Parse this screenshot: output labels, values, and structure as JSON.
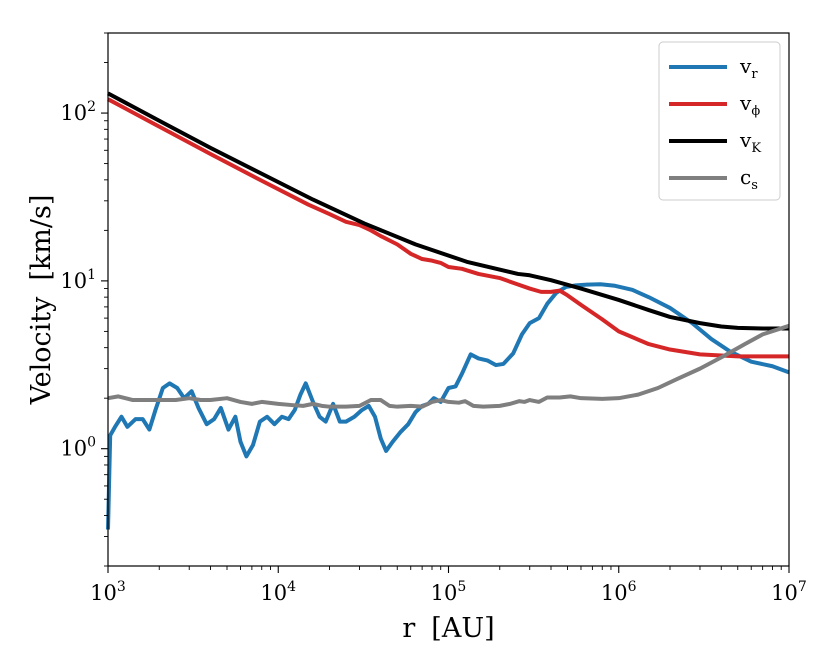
{
  "chart_data": {
    "type": "line",
    "xscale": "log",
    "yscale": "log",
    "xlim": [
      1000,
      10000000
    ],
    "ylim": [
      0.2,
      300
    ],
    "grid": false,
    "legend_position": "top-right",
    "xlabel": {
      "main": "r",
      "unit": "[AU]"
    },
    "ylabel": {
      "main": "Velocity",
      "unit": "[km/s]"
    },
    "x_ticks": [
      {
        "value": 1000,
        "mant": "10",
        "exp": "3"
      },
      {
        "value": 10000,
        "mant": "10",
        "exp": "4"
      },
      {
        "value": 100000,
        "mant": "10",
        "exp": "5"
      },
      {
        "value": 1000000,
        "mant": "10",
        "exp": "6"
      },
      {
        "value": 10000000,
        "mant": "10",
        "exp": "7"
      }
    ],
    "y_ticks": [
      {
        "value": 1,
        "mant": "10",
        "exp": "0"
      },
      {
        "value": 10,
        "mant": "10",
        "exp": "1"
      },
      {
        "value": 100,
        "mant": "10",
        "exp": "2"
      }
    ],
    "series": [
      {
        "name": "v_r",
        "label_main": "v",
        "label_sub": "r",
        "color": "#1f77b4",
        "points": [
          [
            1000,
            0.33
          ],
          [
            1030,
            1.2
          ],
          [
            1100,
            1.35
          ],
          [
            1200,
            1.55
          ],
          [
            1300,
            1.35
          ],
          [
            1450,
            1.5
          ],
          [
            1600,
            1.5
          ],
          [
            1750,
            1.3
          ],
          [
            1900,
            1.7
          ],
          [
            2100,
            2.3
          ],
          [
            2300,
            2.45
          ],
          [
            2550,
            2.3
          ],
          [
            2800,
            2.0
          ],
          [
            3100,
            2.2
          ],
          [
            3400,
            1.75
          ],
          [
            3800,
            1.4
          ],
          [
            4200,
            1.5
          ],
          [
            4600,
            1.75
          ],
          [
            5100,
            1.3
          ],
          [
            5600,
            1.55
          ],
          [
            6000,
            1.1
          ],
          [
            6500,
            0.9
          ],
          [
            7100,
            1.05
          ],
          [
            7800,
            1.45
          ],
          [
            8600,
            1.55
          ],
          [
            9500,
            1.4
          ],
          [
            10500,
            1.55
          ],
          [
            11500,
            1.5
          ],
          [
            12500,
            1.7
          ],
          [
            13500,
            2.1
          ],
          [
            14500,
            2.45
          ],
          [
            16000,
            1.9
          ],
          [
            17500,
            1.55
          ],
          [
            19000,
            1.45
          ],
          [
            21000,
            1.85
          ],
          [
            23000,
            1.45
          ],
          [
            25000,
            1.45
          ],
          [
            28000,
            1.55
          ],
          [
            31000,
            1.7
          ],
          [
            34000,
            1.8
          ],
          [
            37000,
            1.55
          ],
          [
            40000,
            1.15
          ],
          [
            43000,
            0.97
          ],
          [
            47000,
            1.1
          ],
          [
            52000,
            1.25
          ],
          [
            58000,
            1.4
          ],
          [
            64000,
            1.65
          ],
          [
            70000,
            1.8
          ],
          [
            76000,
            1.85
          ],
          [
            82000,
            2.0
          ],
          [
            90000,
            1.9
          ],
          [
            100000,
            2.3
          ],
          [
            110000,
            2.35
          ],
          [
            120000,
            2.8
          ],
          [
            135000,
            3.65
          ],
          [
            150000,
            3.45
          ],
          [
            170000,
            3.35
          ],
          [
            190000,
            3.15
          ],
          [
            210000,
            3.2
          ],
          [
            240000,
            3.7
          ],
          [
            270000,
            4.8
          ],
          [
            300000,
            5.6
          ],
          [
            340000,
            6.0
          ],
          [
            380000,
            7.3
          ],
          [
            430000,
            8.5
          ],
          [
            490000,
            9.2
          ],
          [
            560000,
            9.4
          ],
          [
            650000,
            9.5
          ],
          [
            780000,
            9.55
          ],
          [
            950000,
            9.35
          ],
          [
            1200000,
            8.85
          ],
          [
            1500000,
            8.0
          ],
          [
            2000000,
            6.9
          ],
          [
            2700000,
            5.6
          ],
          [
            3500000,
            4.5
          ],
          [
            4500000,
            3.8
          ],
          [
            6000000,
            3.3
          ],
          [
            8000000,
            3.1
          ],
          [
            10000000,
            2.85
          ]
        ]
      },
      {
        "name": "v_phi",
        "label_main": "v",
        "label_sub": "ϕ",
        "color": "#d62728",
        "points": [
          [
            1000,
            121
          ],
          [
            2000,
            83
          ],
          [
            4000,
            57
          ],
          [
            8000,
            39.5
          ],
          [
            15000,
            28.5
          ],
          [
            20000,
            25
          ],
          [
            25000,
            22.5
          ],
          [
            30000,
            21.5
          ],
          [
            35000,
            20
          ],
          [
            40000,
            18.5
          ],
          [
            50000,
            16.5
          ],
          [
            60000,
            14.5
          ],
          [
            70000,
            13.5
          ],
          [
            80000,
            13.2
          ],
          [
            90000,
            12.8
          ],
          [
            100000,
            12.1
          ],
          [
            120000,
            11.8
          ],
          [
            130000,
            11.5
          ],
          [
            150000,
            11.0
          ],
          [
            200000,
            10.4
          ],
          [
            250000,
            9.6
          ],
          [
            300000,
            9.0
          ],
          [
            350000,
            8.6
          ],
          [
            400000,
            8.6
          ],
          [
            450000,
            8.75
          ],
          [
            500000,
            8.2
          ],
          [
            600000,
            7.2
          ],
          [
            800000,
            5.9
          ],
          [
            1000000,
            5.0
          ],
          [
            1500000,
            4.2
          ],
          [
            2000000,
            3.9
          ],
          [
            3000000,
            3.65
          ],
          [
            5000000,
            3.55
          ],
          [
            7000000,
            3.55
          ],
          [
            10000000,
            3.55
          ]
        ]
      },
      {
        "name": "v_K",
        "label_main": "v",
        "label_sub": "K",
        "color": "#000000",
        "points": [
          [
            1000,
            131
          ],
          [
            2000,
            90
          ],
          [
            4000,
            62
          ],
          [
            8000,
            43.5
          ],
          [
            16000,
            30.5
          ],
          [
            32000,
            22
          ],
          [
            64000,
            16.5
          ],
          [
            128000,
            13.0
          ],
          [
            256000,
            11.0
          ],
          [
            300000,
            10.8
          ],
          [
            400000,
            10.1
          ],
          [
            600000,
            9.0
          ],
          [
            1000000,
            7.7
          ],
          [
            1500000,
            6.7
          ],
          [
            2000000,
            6.1
          ],
          [
            3000000,
            5.6
          ],
          [
            4000000,
            5.35
          ],
          [
            5000000,
            5.25
          ],
          [
            7000000,
            5.2
          ],
          [
            10000000,
            5.2
          ]
        ]
      },
      {
        "name": "c_s",
        "label_main": "c",
        "label_sub": "s",
        "color": "#7f7f7f",
        "points": [
          [
            1000,
            2.0
          ],
          [
            1150,
            2.05
          ],
          [
            1400,
            1.95
          ],
          [
            1800,
            1.95
          ],
          [
            2500,
            1.95
          ],
          [
            3000,
            2.0
          ],
          [
            3500,
            1.95
          ],
          [
            4000,
            1.95
          ],
          [
            5000,
            2.0
          ],
          [
            6000,
            1.9
          ],
          [
            7000,
            1.85
          ],
          [
            8000,
            1.9
          ],
          [
            10000,
            1.85
          ],
          [
            12000,
            1.82
          ],
          [
            14000,
            1.8
          ],
          [
            16000,
            1.85
          ],
          [
            18000,
            1.8
          ],
          [
            20000,
            1.78
          ],
          [
            25000,
            1.78
          ],
          [
            30000,
            1.8
          ],
          [
            35000,
            1.95
          ],
          [
            40000,
            1.95
          ],
          [
            45000,
            1.8
          ],
          [
            50000,
            1.78
          ],
          [
            60000,
            1.8
          ],
          [
            70000,
            1.78
          ],
          [
            80000,
            1.9
          ],
          [
            90000,
            1.95
          ],
          [
            100000,
            1.9
          ],
          [
            115000,
            1.88
          ],
          [
            125000,
            1.92
          ],
          [
            140000,
            1.8
          ],
          [
            160000,
            1.78
          ],
          [
            200000,
            1.8
          ],
          [
            230000,
            1.85
          ],
          [
            260000,
            1.92
          ],
          [
            280000,
            1.9
          ],
          [
            300000,
            1.95
          ],
          [
            340000,
            1.9
          ],
          [
            380000,
            2.02
          ],
          [
            450000,
            2.02
          ],
          [
            520000,
            2.05
          ],
          [
            600000,
            2.0
          ],
          [
            800000,
            1.98
          ],
          [
            1000000,
            2.0
          ],
          [
            1300000,
            2.1
          ],
          [
            1700000,
            2.3
          ],
          [
            2200000,
            2.6
          ],
          [
            3000000,
            3.0
          ],
          [
            4000000,
            3.5
          ],
          [
            5500000,
            4.2
          ],
          [
            7000000,
            4.8
          ],
          [
            10000000,
            5.4
          ]
        ]
      }
    ]
  }
}
